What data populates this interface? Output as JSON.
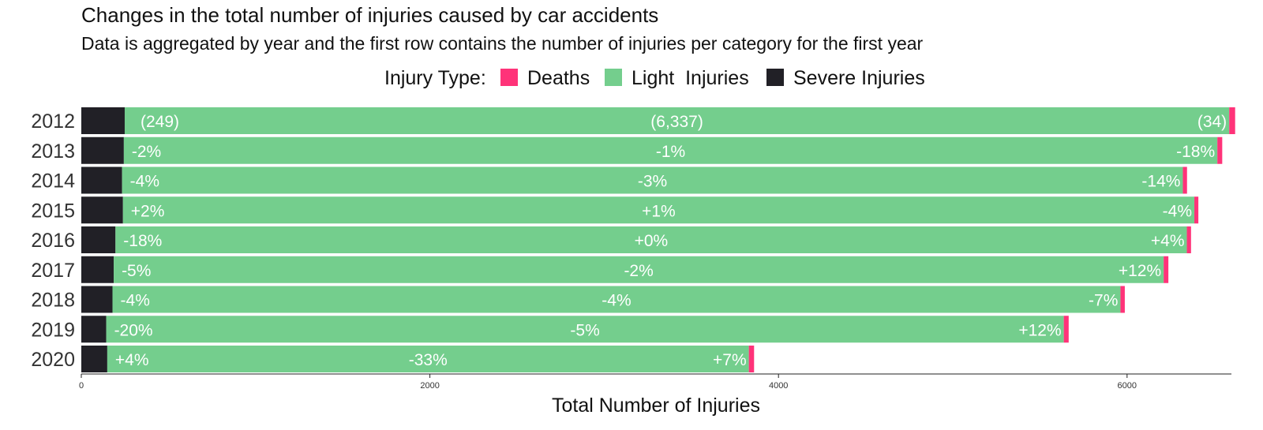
{
  "chart_data": {
    "type": "bar",
    "orientation": "horizontal",
    "stacked": true,
    "title": "Changes in the total number of injuries caused by car accidents",
    "subtitle": "Data is aggregated by year and the first row contains the number of injuries per category for the first year",
    "xlabel": "Total Number of Injuries",
    "ylabel": "",
    "xlim": [
      0,
      6600
    ],
    "xticks": [
      0,
      2000,
      4000,
      6000
    ],
    "xtick_labels": [
      "0",
      "2000",
      "4000",
      "6000"
    ],
    "grid": false,
    "legend": {
      "title": "Injury Type:",
      "position": "top",
      "entries": [
        "Deaths",
        "Light  Injuries",
        "Severe Injuries"
      ]
    },
    "categories": [
      "2012",
      "2013",
      "2014",
      "2015",
      "2016",
      "2017",
      "2018",
      "2019",
      "2020"
    ],
    "stack_order": [
      "Severe Injuries",
      "Light  Injuries",
      "Deaths"
    ],
    "series": [
      {
        "name": "Severe Injuries",
        "color": "#212026",
        "values": [
          249,
          244,
          234,
          239,
          196,
          186,
          179,
          143,
          149
        ],
        "labels": [
          "(249)",
          "-2%",
          "-4%",
          "+2%",
          "-18%",
          "-5%",
          "-4%",
          "-20%",
          "+4%"
        ]
      },
      {
        "name": "Light  Injuries",
        "color": "#74CE8D",
        "values": [
          6337,
          6274,
          6086,
          6147,
          6147,
          6024,
          5783,
          5494,
          3681
        ],
        "labels": [
          "(6,337)",
          "-1%",
          "-3%",
          "+1%",
          "+0%",
          "-2%",
          "-4%",
          "-5%",
          "-33%"
        ]
      },
      {
        "name": "Deaths",
        "color": "#FF3379",
        "values": [
          34,
          28,
          24,
          23,
          24,
          27,
          25,
          28,
          30
        ],
        "labels": [
          "(34)",
          "-18%",
          "-14%",
          "-4%",
          "+4%",
          "+12%",
          "-7%",
          "+12%",
          "+7%"
        ]
      }
    ]
  }
}
